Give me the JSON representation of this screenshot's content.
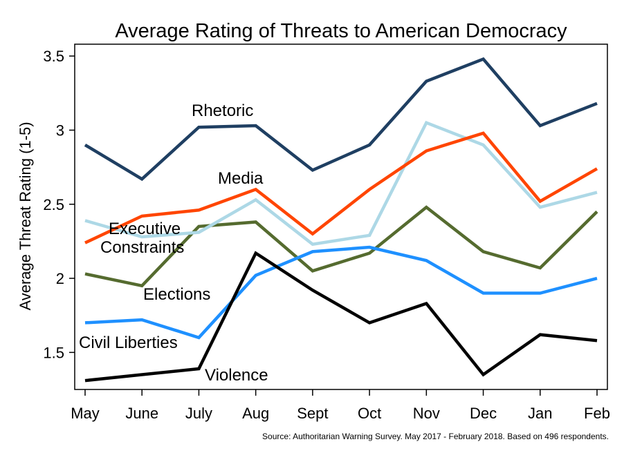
{
  "chart_data": {
    "type": "line",
    "title": "Average Rating of Threats to American Democracy",
    "xlabel": "",
    "ylabel": "Average Threat Rating (1-5)",
    "categories": [
      "May",
      "June",
      "July",
      "Aug",
      "Sept",
      "Oct",
      "Nov",
      "Dec",
      "Jan",
      "Feb"
    ],
    "ylim": [
      1.25,
      3.58
    ],
    "yticks": [
      1.5,
      2,
      2.5,
      3,
      3.5
    ],
    "ytick_labels": [
      "1.5",
      "2",
      "2.5",
      "3",
      "3.5"
    ],
    "grid": false,
    "legend": "inline labels",
    "source": "Source: Authoritarian Warning Survey. May 2017 - February 2018. Based on 496 respondents.",
    "series": [
      {
        "name": "Elections",
        "label_lines": [
          "Elections"
        ],
        "color": "#556b2f",
        "values": [
          2.03,
          1.95,
          2.35,
          2.38,
          2.05,
          2.17,
          2.48,
          2.18,
          2.07,
          2.45
        ]
      },
      {
        "name": "Executive Constraints",
        "label_lines": [
          "Executive",
          "Constraints"
        ],
        "color": "#add8e6",
        "values": [
          2.39,
          2.28,
          2.31,
          2.53,
          2.23,
          2.29,
          3.05,
          2.9,
          2.48,
          2.58
        ]
      },
      {
        "name": "Media",
        "label_lines": [
          "Media"
        ],
        "color": "#ff4500",
        "values": [
          2.24,
          2.42,
          2.46,
          2.6,
          2.3,
          2.6,
          2.86,
          2.98,
          2.52,
          2.74
        ]
      },
      {
        "name": "Civil Liberties",
        "label_lines": [
          "Civil Liberties"
        ],
        "color": "#1e90ff",
        "values": [
          1.7,
          1.72,
          1.6,
          2.02,
          2.18,
          2.21,
          2.12,
          1.9,
          1.9,
          2.0
        ]
      },
      {
        "name": "Violence",
        "label_lines": [
          "Violence"
        ],
        "color": "#000000",
        "values": [
          1.31,
          1.35,
          1.39,
          2.17,
          1.92,
          1.7,
          1.83,
          1.35,
          1.62,
          1.58
        ]
      },
      {
        "name": "Rhetoric",
        "label_lines": [
          "Rhetoric"
        ],
        "color": "#1f3f62",
        "values": [
          2.9,
          2.67,
          3.02,
          3.03,
          2.73,
          2.9,
          3.33,
          3.48,
          3.03,
          3.18
        ]
      }
    ]
  }
}
